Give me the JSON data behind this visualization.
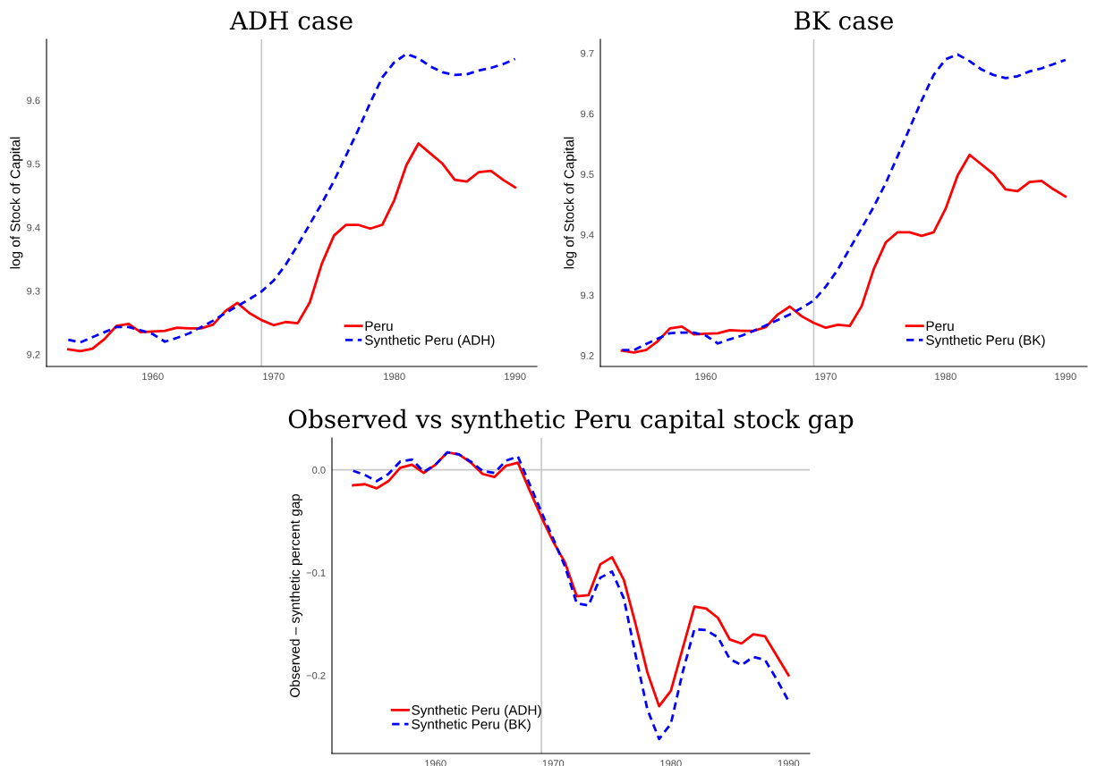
{
  "chart_data": [
    {
      "type": "line",
      "title": "ADH case",
      "ylabel": "log of Stock of Capital",
      "x": [
        1953,
        1954,
        1955,
        1956,
        1957,
        1958,
        1959,
        1960,
        1961,
        1962,
        1963,
        1964,
        1965,
        1966,
        1967,
        1968,
        1969,
        1970,
        1971,
        1972,
        1973,
        1974,
        1975,
        1976,
        1977,
        1978,
        1979,
        1980,
        1981,
        1982,
        1983,
        1984,
        1985,
        1986,
        1987,
        1988,
        1989,
        1990
      ],
      "series": [
        {
          "name": "Peru",
          "color": "#ff0000",
          "line_style": "solid",
          "values": [
            9.208,
            9.205,
            9.209,
            9.224,
            9.245,
            9.248,
            9.235,
            9.236,
            9.237,
            9.242,
            9.241,
            9.241,
            9.247,
            9.268,
            9.281,
            9.265,
            9.254,
            9.246,
            9.251,
            9.249,
            9.282,
            9.343,
            9.387,
            9.404,
            9.404,
            9.398,
            9.404,
            9.443,
            9.498,
            9.532,
            9.516,
            9.5,
            9.475,
            9.472,
            9.487,
            9.489,
            9.475,
            9.463
          ]
        },
        {
          "name": "Synthetic Peru (ADH)",
          "color": "#0000ff",
          "line_style": "dashed",
          "values": [
            9.223,
            9.219,
            9.227,
            9.235,
            9.243,
            9.243,
            9.238,
            9.232,
            9.22,
            9.226,
            9.233,
            9.243,
            9.253,
            9.265,
            9.276,
            9.287,
            9.299,
            9.316,
            9.341,
            9.372,
            9.405,
            9.438,
            9.473,
            9.513,
            9.553,
            9.596,
            9.636,
            9.66,
            9.673,
            9.666,
            9.653,
            9.644,
            9.64,
            9.641,
            9.647,
            9.651,
            9.657,
            9.665
          ]
        }
      ],
      "xlim": [
        1951.2,
        1991.8
      ],
      "xticks": [
        1960,
        1970,
        1980,
        1990
      ],
      "ylim": [
        9.181,
        9.696
      ],
      "yticks": [
        9.2,
        9.3,
        9.4,
        9.5,
        9.6
      ],
      "ref_lines": [
        {
          "axis": "x",
          "value": 1969,
          "color": "#c8c8c8"
        }
      ],
      "legend": "bottom right",
      "grid": false
    },
    {
      "type": "line",
      "title": "BK case",
      "ylabel": "log of Stock of Capital",
      "x": [
        1953,
        1954,
        1955,
        1956,
        1957,
        1958,
        1959,
        1960,
        1961,
        1962,
        1963,
        1964,
        1965,
        1966,
        1967,
        1968,
        1969,
        1970,
        1971,
        1972,
        1973,
        1974,
        1975,
        1976,
        1977,
        1978,
        1979,
        1980,
        1981,
        1982,
        1983,
        1984,
        1985,
        1986,
        1987,
        1988,
        1989,
        1990
      ],
      "series": [
        {
          "name": "Peru",
          "color": "#ff0000",
          "line_style": "solid",
          "values": [
            9.208,
            9.205,
            9.209,
            9.224,
            9.245,
            9.248,
            9.235,
            9.236,
            9.237,
            9.242,
            9.241,
            9.241,
            9.247,
            9.268,
            9.281,
            9.265,
            9.254,
            9.246,
            9.251,
            9.249,
            9.282,
            9.343,
            9.387,
            9.404,
            9.404,
            9.398,
            9.404,
            9.443,
            9.498,
            9.532,
            9.516,
            9.5,
            9.475,
            9.472,
            9.487,
            9.489,
            9.475,
            9.463
          ]
        },
        {
          "name": "Synthetic Peru (BK)",
          "color": "#0000ff",
          "line_style": "dashed",
          "values": [
            9.209,
            9.209,
            9.219,
            9.228,
            9.237,
            9.238,
            9.238,
            9.233,
            9.22,
            9.227,
            9.233,
            9.241,
            9.25,
            9.259,
            9.268,
            9.279,
            9.291,
            9.314,
            9.342,
            9.377,
            9.411,
            9.446,
            9.485,
            9.53,
            9.576,
            9.622,
            9.664,
            9.69,
            9.698,
            9.687,
            9.673,
            9.664,
            9.659,
            9.662,
            9.67,
            9.675,
            9.682,
            9.689
          ]
        }
      ],
      "xlim": [
        1951.2,
        1991.8
      ],
      "xticks": [
        1960,
        1970,
        1980,
        1990
      ],
      "ylim": [
        9.182,
        9.723
      ],
      "yticks": [
        9.2,
        9.3,
        9.4,
        9.5,
        9.6,
        9.7
      ],
      "ref_lines": [
        {
          "axis": "x",
          "value": 1969,
          "color": "#c8c8c8"
        }
      ],
      "legend": "bottom right",
      "grid": false
    },
    {
      "type": "line",
      "title": "Observed vs synthetic Peru capital stock gap",
      "ylabel": "Observed – synthetic percent gap",
      "x": [
        1953,
        1954,
        1955,
        1956,
        1957,
        1958,
        1959,
        1960,
        1961,
        1962,
        1963,
        1964,
        1965,
        1966,
        1967,
        1968,
        1969,
        1970,
        1971,
        1972,
        1973,
        1974,
        1975,
        1976,
        1977,
        1978,
        1979,
        1980,
        1981,
        1982,
        1983,
        1984,
        1985,
        1986,
        1987,
        1988,
        1989,
        1990
      ],
      "series": [
        {
          "name": "Synthetic Peru (ADH)",
          "color": "#ff0000",
          "line_style": "solid",
          "values": [
            -0.015,
            -0.014,
            -0.018,
            -0.011,
            0.002,
            0.005,
            -0.003,
            0.005,
            0.017,
            0.015,
            0.007,
            -0.004,
            -0.007,
            0.004,
            0.007,
            -0.02,
            -0.046,
            -0.07,
            -0.09,
            -0.123,
            -0.122,
            -0.092,
            -0.085,
            -0.107,
            -0.15,
            -0.197,
            -0.23,
            -0.215,
            -0.174,
            -0.133,
            -0.135,
            -0.144,
            -0.165,
            -0.169,
            -0.16,
            -0.162,
            -0.181,
            -0.2
          ]
        },
        {
          "name": "Synthetic Peru (BK)",
          "color": "#0000ff",
          "line_style": "dashed",
          "values": [
            -0.001,
            -0.005,
            -0.011,
            -0.004,
            0.008,
            0.01,
            -0.002,
            0.005,
            0.017,
            0.015,
            0.008,
            -0.001,
            -0.003,
            0.009,
            0.013,
            -0.014,
            -0.041,
            -0.067,
            -0.094,
            -0.13,
            -0.132,
            -0.105,
            -0.099,
            -0.125,
            -0.18,
            -0.233,
            -0.262,
            -0.247,
            -0.197,
            -0.155,
            -0.156,
            -0.163,
            -0.184,
            -0.19,
            -0.182,
            -0.185,
            -0.204,
            -0.225
          ]
        }
      ],
      "xlim": [
        1951.2,
        1991.8
      ],
      "xticks": [
        1960,
        1970,
        1980,
        1990
      ],
      "ylim": [
        -0.276,
        0.031
      ],
      "yticks": [
        {
          "value": 0,
          "label": "0.0"
        },
        {
          "value": -0.1,
          "label": "−0.1"
        },
        {
          "value": -0.2,
          "label": "−0.2"
        }
      ],
      "ref_lines": [
        {
          "axis": "x",
          "value": 1969,
          "color": "#c8c8c8"
        },
        {
          "axis": "y",
          "value": 0,
          "color": "#c8c8c8"
        }
      ],
      "legend": "bottom left",
      "grid": false
    }
  ]
}
